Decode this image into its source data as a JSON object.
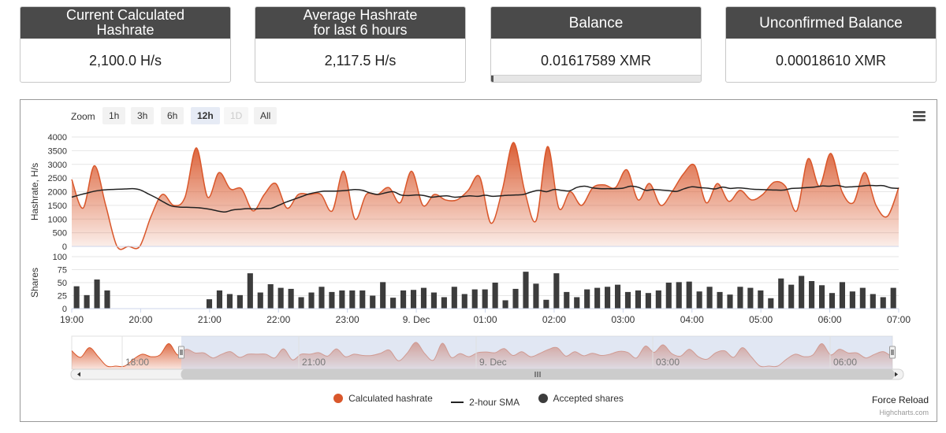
{
  "cards": [
    {
      "title_line1": "Current Calculated",
      "title_line2": "Hashrate",
      "value": "2,100.0 H/s"
    },
    {
      "title_line1": "Average Hashrate",
      "title_line2": "for last 6 hours",
      "value": "2,117.5 H/s"
    },
    {
      "title_line1": "Balance",
      "title_line2": "",
      "value": "0.01617589 XMR",
      "progress_fraction": 0.01
    },
    {
      "title_line1": "Unconfirmed Balance",
      "title_line2": "",
      "value": "0.00018610 XMR"
    }
  ],
  "zoom": {
    "label": "Zoom",
    "buttons": [
      {
        "label": "1h",
        "state": "normal"
      },
      {
        "label": "3h",
        "state": "normal"
      },
      {
        "label": "6h",
        "state": "normal"
      },
      {
        "label": "12h",
        "state": "active"
      },
      {
        "label": "1D",
        "state": "disabled"
      },
      {
        "label": "All",
        "state": "normal"
      }
    ]
  },
  "menu_icon": "hamburger-icon",
  "force_reload": "Force Reload",
  "credits": "Highcharts.com",
  "colors": {
    "hashrate": "#d9572b",
    "sma": "#222222",
    "shares": "#3c3c3c",
    "navigator_mask": "#c9d3ea"
  },
  "chart_data": {
    "type": "area",
    "x_start_hour": 19,
    "x_end_hour": 31,
    "x_ticks": [
      "19:00",
      "20:00",
      "21:00",
      "22:00",
      "23:00",
      "9. Dec",
      "01:00",
      "02:00",
      "03:00",
      "04:00",
      "05:00",
      "06:00",
      "07:00"
    ],
    "navigator_ticks": [
      "18:00",
      "21:00",
      "9. Dec",
      "03:00",
      "06:00"
    ],
    "hashrate_axis": {
      "label": "Hashrate, H/s",
      "min": 0,
      "max": 4000,
      "ticks": [
        0,
        500,
        1000,
        1500,
        2000,
        2500,
        3000,
        3500,
        4000
      ]
    },
    "shares_axis": {
      "label": "Shares",
      "min": 0,
      "max": 100,
      "ticks": [
        0,
        25,
        50,
        75,
        100
      ]
    },
    "series": [
      {
        "name": "Calculated hashrate",
        "type": "area",
        "values": [
          2450,
          1400,
          2950,
          1500,
          0,
          0,
          0,
          1100,
          1900,
          1500,
          1800,
          3600,
          1800,
          2700,
          2100,
          2100,
          1300,
          1900,
          2300,
          1400,
          1900,
          1900,
          1900,
          1300,
          2750,
          1000,
          1900,
          1900,
          2150,
          1600,
          2750,
          1500,
          1900,
          1700,
          1700,
          2050,
          2550,
          850,
          2050,
          3800,
          2000,
          950,
          3650,
          1400,
          2000,
          1500,
          2150,
          2250,
          2150,
          2800,
          1700,
          2300,
          1500,
          2000,
          2650,
          2950,
          1600,
          2300,
          1650,
          2050,
          1700,
          1900,
          2350,
          2200,
          1300,
          3200,
          2200,
          3400,
          2000,
          1600,
          2700,
          1500,
          1100,
          2150
        ]
      },
      {
        "name": "2-hour SMA",
        "type": "line",
        "values": [
          1800,
          1880,
          1950,
          2020,
          2060,
          2080,
          2090,
          2100,
          2110,
          2060,
          1920,
          1780,
          1620,
          1480,
          1440,
          1430,
          1420,
          1400,
          1360,
          1300,
          1260,
          1330,
          1360,
          1380,
          1370,
          1390,
          1390,
          1500,
          1620,
          1720,
          1820,
          1920,
          1980,
          2020,
          2020,
          2030,
          2050,
          2080,
          2050,
          1950,
          1900,
          1960,
          2000,
          1880,
          1860,
          1880,
          1860,
          1800,
          1830,
          1850,
          1800,
          1820,
          1850,
          1830,
          1870,
          1830,
          1850,
          1870,
          1880,
          1900,
          1990,
          2050,
          2000,
          2080,
          2050,
          2030,
          2160,
          2200,
          2140,
          2110,
          2110,
          2110,
          2130,
          2200,
          2160,
          2050,
          2080,
          2060,
          2040,
          2010,
          2110,
          2180,
          2150,
          2130,
          2100,
          2170,
          2120,
          2140,
          2120,
          2090,
          2080,
          2070,
          2060,
          2060,
          2120,
          2130,
          2150,
          2170,
          2210,
          2200,
          2230,
          2170,
          2180,
          2200,
          2230,
          2220,
          2220,
          2140,
          2120
        ]
      },
      {
        "name": "Accepted shares",
        "type": "column",
        "values": [
          43,
          26,
          56,
          35,
          0,
          0,
          0,
          0,
          0,
          0,
          0,
          0,
          0,
          18,
          35,
          28,
          26,
          68,
          31,
          47,
          40,
          38,
          22,
          31,
          42,
          32,
          35,
          35,
          35,
          25,
          51,
          21,
          35,
          36,
          40,
          31,
          22,
          42,
          28,
          37,
          37,
          50,
          16,
          38,
          71,
          48,
          17,
          68,
          32,
          22,
          37,
          40,
          42,
          46,
          32,
          35,
          30,
          35,
          50,
          51,
          52,
          33,
          42,
          32,
          27,
          42,
          40,
          35,
          20,
          58,
          46,
          63,
          53,
          45,
          30,
          51,
          33,
          40,
          28,
          22,
          40
        ]
      }
    ]
  }
}
